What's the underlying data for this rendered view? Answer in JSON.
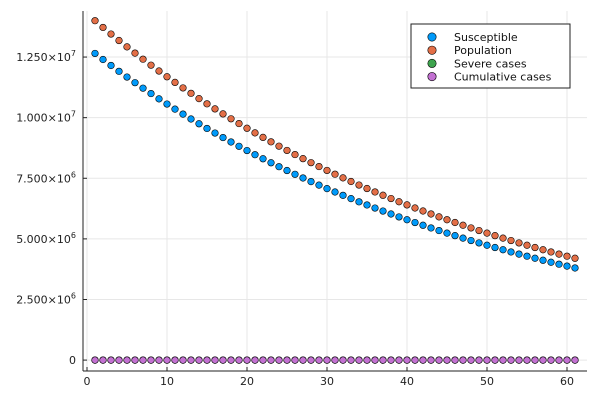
{
  "chart_data": {
    "type": "scatter",
    "title": "",
    "xlabel": "",
    "ylabel": "",
    "grid": true,
    "legend_position": "top-right",
    "xlim": [
      -0.5,
      62.5
    ],
    "ylim": [
      -450000,
      14400000
    ],
    "x_ticks": [
      0,
      10,
      20,
      30,
      40,
      50,
      60
    ],
    "x_tick_labels": [
      "0",
      "10",
      "20",
      "30",
      "40",
      "50",
      "60"
    ],
    "y_ticks": [
      0,
      2500000,
      5000000,
      7500000,
      10000000,
      12500000
    ],
    "y_tick_labels": [
      {
        "mantissa": "0",
        "exponent": ""
      },
      {
        "mantissa": "2.500×10",
        "exponent": "6"
      },
      {
        "mantissa": "5.000×10",
        "exponent": "6"
      },
      {
        "mantissa": "7.500×10",
        "exponent": "6"
      },
      {
        "mantissa": "1.000×10",
        "exponent": "7"
      },
      {
        "mantissa": "1.250×10",
        "exponent": "7"
      }
    ],
    "x": {
      "start": 1,
      "end": 61,
      "step": 1
    },
    "series": [
      {
        "name": "Susceptible",
        "color": "#009AFA",
        "y_first": 12650000,
        "y_last": 3800000,
        "curve": "exponential"
      },
      {
        "name": "Population",
        "color": "#E36F47",
        "y_first": 14000000,
        "y_last": 4200000,
        "curve": "exponential"
      },
      {
        "name": "Severe cases",
        "color": "#3EA44E",
        "y_first": 0,
        "y_last": 0,
        "curve": "constant"
      },
      {
        "name": "Cumulative cases",
        "color": "#C371D2",
        "y_first": 0,
        "y_last": 0,
        "curve": "constant"
      }
    ]
  }
}
